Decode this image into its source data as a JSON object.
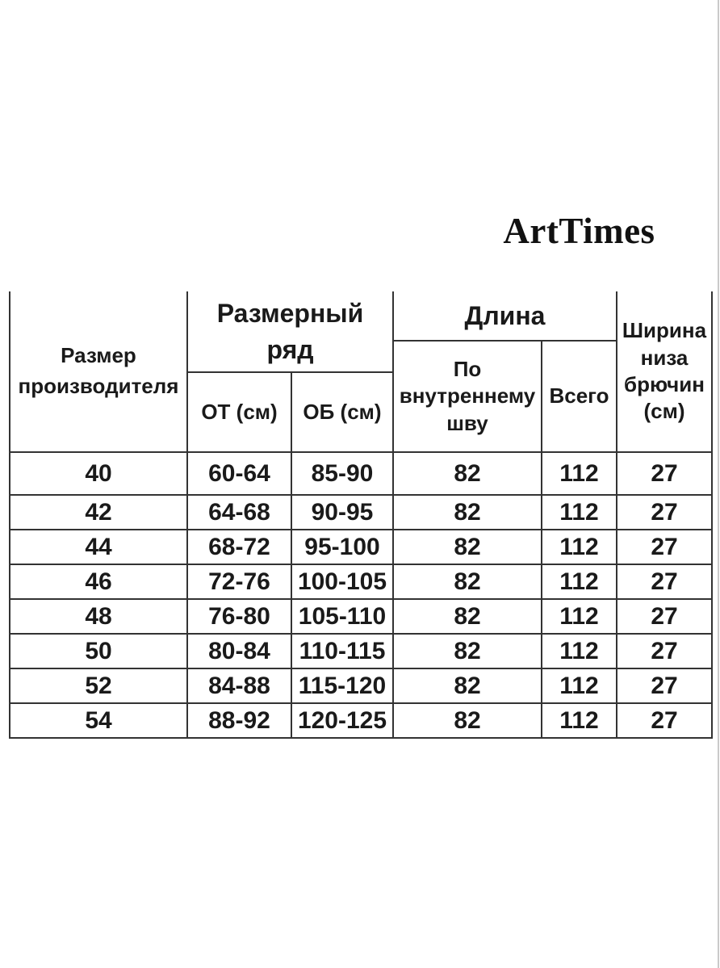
{
  "brand": "ArtTimes",
  "table": {
    "headers": {
      "manufacturer_size": "Размер\nпроизводителя",
      "size_range": "Размерный\nряд",
      "waist": "ОТ (см)",
      "hips": "ОБ (см)",
      "length": "Длина",
      "inner_seam": "По\nвнутреннему\nшву",
      "total": "Всего",
      "hem_width": "Ширина\nниза\nбрючин\n(см)"
    },
    "rows": [
      [
        "40",
        "60-64",
        "85-90",
        "82",
        "112",
        "27"
      ],
      [
        "42",
        "64-68",
        "90-95",
        "82",
        "112",
        "27"
      ],
      [
        "44",
        "68-72",
        "95-100",
        "82",
        "112",
        "27"
      ],
      [
        "46",
        "72-76",
        "100-105",
        "82",
        "112",
        "27"
      ],
      [
        "48",
        "76-80",
        "105-110",
        "82",
        "112",
        "27"
      ],
      [
        "50",
        "80-84",
        "110-115",
        "82",
        "112",
        "27"
      ],
      [
        "52",
        "84-88",
        "115-120",
        "82",
        "112",
        "27"
      ],
      [
        "54",
        "88-92",
        "120-125",
        "82",
        "112",
        "27"
      ]
    ]
  },
  "colors": {
    "text": "#1a1a1a",
    "border": "#333333",
    "edge_line": "#cacaca"
  }
}
